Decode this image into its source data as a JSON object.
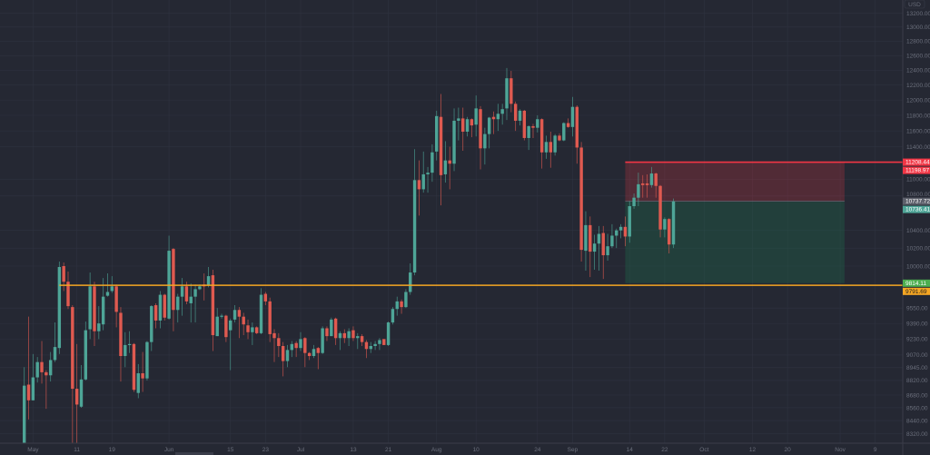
{
  "chart_data": {
    "type": "candlestick",
    "currency": "USD",
    "scale": "log",
    "colors": {
      "background": "#252833",
      "grid": "#2f3240",
      "up": "#4ea597",
      "down": "#e05a50",
      "axis_text": "#6b6f7c",
      "stop_zone": "#f23645",
      "target_zone": "#1d6b4a",
      "hline": "#f5a623"
    },
    "ohlc": [
      [
        8230,
        8950,
        8220,
        8770
      ],
      [
        8780,
        9460,
        8450,
        8630
      ],
      [
        8630,
        9080,
        8630,
        8850
      ],
      [
        8850,
        9050,
        8800,
        9000
      ],
      [
        9000,
        9210,
        8790,
        8900
      ],
      [
        8900,
        8920,
        8550,
        8870
      ],
      [
        8870,
        9100,
        8810,
        9020
      ],
      [
        9020,
        9400,
        9000,
        9150
      ],
      [
        9140,
        10050,
        9080,
        9990
      ],
      [
        10000,
        10040,
        9730,
        9830
      ],
      [
        9830,
        9940,
        9540,
        9570
      ],
      [
        9560,
        9580,
        8220,
        8740
      ],
      [
        8740,
        9180,
        8220,
        8590
      ],
      [
        8570,
        8970,
        8560,
        8830
      ],
      [
        8830,
        9410,
        8820,
        9320
      ],
      [
        9330,
        9930,
        9230,
        9780
      ],
      [
        9780,
        9830,
        9160,
        9310
      ],
      [
        9310,
        9570,
        9230,
        9390
      ],
      [
        9380,
        9870,
        9320,
        9670
      ],
      [
        9680,
        9920,
        9670,
        9720
      ],
      [
        9730,
        9890,
        9710,
        9780
      ],
      [
        9780,
        9800,
        9350,
        9510
      ],
      [
        9500,
        9560,
        8810,
        9060
      ],
      [
        9060,
        9300,
        8950,
        9170
      ],
      [
        9170,
        9310,
        9090,
        9180
      ],
      [
        9180,
        9190,
        8710,
        8730
      ],
      [
        8700,
        8980,
        8650,
        8890
      ],
      [
        8890,
        9100,
        8710,
        8840
      ],
      [
        8840,
        9210,
        8820,
        9200
      ],
      [
        9200,
        9580,
        9110,
        9570
      ],
      [
        9580,
        9600,
        9340,
        9420
      ],
      [
        9420,
        9730,
        9340,
        9690
      ],
      [
        9690,
        9700,
        9420,
        9450
      ],
      [
        9440,
        10340,
        9430,
        10170
      ],
      [
        10190,
        10200,
        9310,
        9530
      ],
      [
        9530,
        9700,
        9400,
        9670
      ],
      [
        9670,
        9870,
        9470,
        9780
      ],
      [
        9780,
        9830,
        9590,
        9620
      ],
      [
        9600,
        9810,
        9400,
        9670
      ],
      [
        9670,
        9800,
        9400,
        9750
      ],
      [
        9750,
        9800,
        9740,
        9780
      ],
      [
        9800,
        9920,
        9630,
        9780
      ],
      [
        9790,
        9990,
        9770,
        9890
      ],
      [
        9900,
        9960,
        9110,
        9270
      ],
      [
        9260,
        9550,
        9260,
        9460
      ],
      [
        9460,
        9490,
        9440,
        9470
      ],
      [
        9470,
        9480,
        9200,
        9250
      ],
      [
        9320,
        9440,
        8920,
        9420
      ],
      [
        9430,
        9580,
        9400,
        9530
      ],
      [
        9530,
        9560,
        9240,
        9460
      ],
      [
        9460,
        9500,
        9270,
        9380
      ],
      [
        9370,
        9430,
        9230,
        9300
      ],
      [
        9300,
        9400,
        9170,
        9350
      ],
      [
        9350,
        9360,
        9280,
        9290
      ],
      [
        9290,
        9760,
        9280,
        9690
      ],
      [
        9700,
        9720,
        9580,
        9620
      ],
      [
        9620,
        9660,
        9200,
        9280
      ],
      [
        9290,
        9330,
        9000,
        9240
      ],
      [
        9240,
        9290,
        9050,
        9160
      ],
      [
        9160,
        9200,
        8860,
        9010
      ],
      [
        9010,
        9170,
        8950,
        9120
      ],
      [
        9120,
        9210,
        9050,
        9180
      ],
      [
        9190,
        9210,
        9050,
        9140
      ],
      [
        9140,
        9300,
        9110,
        9230
      ],
      [
        9240,
        9250,
        8950,
        9090
      ],
      [
        9090,
        9100,
        9020,
        9060
      ],
      [
        9060,
        9170,
        9040,
        9130
      ],
      [
        9140,
        9150,
        8930,
        9090
      ],
      [
        9090,
        9360,
        9080,
        9340
      ],
      [
        9340,
        9360,
        9210,
        9260
      ],
      [
        9260,
        9450,
        9260,
        9430
      ],
      [
        9440,
        9450,
        9170,
        9240
      ],
      [
        9240,
        9310,
        9120,
        9290
      ],
      [
        9290,
        9330,
        9190,
        9240
      ],
      [
        9240,
        9340,
        9160,
        9310
      ],
      [
        9320,
        9360,
        9210,
        9240
      ],
      [
        9240,
        9290,
        9130,
        9260
      ],
      [
        9260,
        9280,
        9160,
        9200
      ],
      [
        9200,
        9220,
        9040,
        9130
      ],
      [
        9130,
        9200,
        9090,
        9160
      ],
      [
        9160,
        9210,
        9120,
        9180
      ],
      [
        9180,
        9240,
        9120,
        9220
      ],
      [
        9230,
        9230,
        9170,
        9170
      ],
      [
        9170,
        9410,
        9160,
        9400
      ],
      [
        9400,
        9560,
        9380,
        9540
      ],
      [
        9540,
        9670,
        9470,
        9620
      ],
      [
        9620,
        9640,
        9490,
        9560
      ],
      [
        9560,
        9750,
        9550,
        9720
      ],
      [
        9720,
        10030,
        9690,
        9930
      ],
      [
        9930,
        11370,
        9900,
        10990
      ],
      [
        10990,
        11230,
        10570,
        10880
      ],
      [
        10880,
        11340,
        10840,
        11060
      ],
      [
        11060,
        11150,
        10840,
        11080
      ],
      [
        11080,
        11430,
        10970,
        11330
      ],
      [
        11340,
        11860,
        11230,
        11790
      ],
      [
        11780,
        12080,
        10690,
        11050
      ],
      [
        11060,
        11470,
        10960,
        11230
      ],
      [
        11230,
        11400,
        10880,
        11190
      ],
      [
        11190,
        11890,
        11100,
        11730
      ],
      [
        11730,
        11900,
        11480,
        11760
      ],
      [
        11760,
        11900,
        11350,
        11590
      ],
      [
        11590,
        11780,
        11530,
        11750
      ],
      [
        11750,
        11760,
        11520,
        11670
      ],
      [
        11680,
        12060,
        11530,
        11890
      ],
      [
        11880,
        11920,
        11120,
        11380
      ],
      [
        11380,
        11640,
        11180,
        11560
      ],
      [
        11560,
        11780,
        11380,
        11770
      ],
      [
        11780,
        11850,
        11560,
        11750
      ],
      [
        11750,
        11950,
        11600,
        11820
      ],
      [
        11820,
        11950,
        11680,
        11880
      ],
      [
        11890,
        12430,
        11740,
        12290
      ],
      [
        12290,
        12390,
        11840,
        11950
      ],
      [
        11950,
        11980,
        11600,
        11730
      ],
      [
        11730,
        11880,
        11670,
        11860
      ],
      [
        11860,
        11870,
        11480,
        11510
      ],
      [
        11510,
        11670,
        11360,
        11660
      ],
      [
        11660,
        11690,
        11510,
        11640
      ],
      [
        11640,
        11800,
        11580,
        11750
      ],
      [
        11750,
        11760,
        11130,
        11330
      ],
      [
        11330,
        11540,
        11250,
        11460
      ],
      [
        11460,
        11590,
        11140,
        11330
      ],
      [
        11330,
        11560,
        11290,
        11540
      ],
      [
        11540,
        11570,
        11470,
        11480
      ],
      [
        11480,
        11710,
        11470,
        11700
      ],
      [
        11700,
        11760,
        11640,
        11650
      ],
      [
        11650,
        12040,
        11530,
        11910
      ],
      [
        11910,
        11930,
        11190,
        11390
      ],
      [
        11390,
        11460,
        10050,
        10180
      ],
      [
        10170,
        10620,
        9950,
        10460
      ],
      [
        10460,
        10560,
        9880,
        10160
      ],
      [
        10160,
        10350,
        9960,
        10250
      ],
      [
        10250,
        10450,
        9950,
        10360
      ],
      [
        10370,
        10450,
        9860,
        10120
      ],
      [
        10120,
        10360,
        10060,
        10220
      ],
      [
        10220,
        10470,
        10200,
        10340
      ],
      [
        10340,
        10420,
        10200,
        10400
      ],
      [
        10400,
        10470,
        10310,
        10440
      ],
      [
        10440,
        10560,
        10220,
        10330
      ],
      [
        10330,
        10740,
        10260,
        10680
      ],
      [
        10680,
        10830,
        10650,
        10780
      ],
      [
        10780,
        11080,
        10680,
        10940
      ],
      [
        10950,
        11050,
        10780,
        10930
      ],
      [
        10950,
        11060,
        10780,
        10930
      ],
      [
        10930,
        11150,
        10900,
        11070
      ],
      [
        11070,
        11080,
        10780,
        10920
      ],
      [
        10920,
        10930,
        10320,
        10410
      ],
      [
        10410,
        10550,
        10320,
        10530
      ],
      [
        10530,
        10540,
        10140,
        10240
      ],
      [
        10240,
        10770,
        10200,
        10736
      ]
    ],
    "y_ticks": [
      "13200.00",
      "13000.00",
      "12800.00",
      "12600.00",
      "12400.00",
      "12200.00",
      "12000.00",
      "11800.00",
      "11600.00",
      "11400.00",
      "11000.00",
      "10800.00",
      "10400.00",
      "10200.00",
      "10000.00",
      "9550.00",
      "9390.00",
      "9230.00",
      "9070.00",
      "8945.00",
      "8820.00",
      "8680.00",
      "8560.00",
      "8440.00",
      "8320.00"
    ],
    "x_ticks": [
      {
        "label": "May",
        "index": 2
      },
      {
        "label": "11",
        "index": 12
      },
      {
        "label": "19",
        "index": 20
      },
      {
        "label": "Jun",
        "index": 33
      },
      {
        "label": "15",
        "index": 47
      },
      {
        "label": "23",
        "index": 55
      },
      {
        "label": "Jul",
        "index": 63
      },
      {
        "label": "13",
        "index": 75
      },
      {
        "label": "21",
        "index": 83
      },
      {
        "label": "Aug",
        "index": 94
      },
      {
        "label": "10",
        "index": 103
      },
      {
        "label": "24",
        "index": 117
      },
      {
        "label": "Sep",
        "index": 125
      },
      {
        "label": "14",
        "index": 138
      },
      {
        "label": "22",
        "index": 146
      },
      {
        "label": "Oct",
        "index": 155
      },
      {
        "label": "12",
        "index": 166
      },
      {
        "label": "20",
        "index": 174
      },
      {
        "label": "Nov",
        "index": 186
      },
      {
        "label": "9",
        "index": 194
      }
    ],
    "horizontal_line": {
      "price": 9791.69,
      "start_index": 8
    },
    "position": {
      "start_index": 137,
      "end_index": 187,
      "stop": 11208.44,
      "entry": 10737.72,
      "target": 9814.11
    },
    "price_tags": [
      {
        "label": "11208.44",
        "price": 11208.44,
        "color": "#f23645",
        "text_color": "#ffffff",
        "offset": 0
      },
      {
        "label": "11198.97",
        "price": 11198.97,
        "color": "#f23645",
        "text_color": "#ffffff",
        "offset": 7
      },
      {
        "label": "10737.72",
        "price": 10737.72,
        "color": "#5d606b",
        "text_color": "#ffffff",
        "offset": 0
      },
      {
        "label": "10736.41",
        "price": 10736.41,
        "color": "#4ea597",
        "text_color": "#ffffff",
        "offset": 8
      },
      {
        "label": "9814.11",
        "price": 9814.11,
        "color": "#4caf50",
        "text_color": "#ffffff",
        "offset": 0
      },
      {
        "label": "9791.69",
        "price": 9791.69,
        "color": "#f5a623",
        "text_color": "#1e1e1e",
        "offset": 7
      }
    ]
  }
}
